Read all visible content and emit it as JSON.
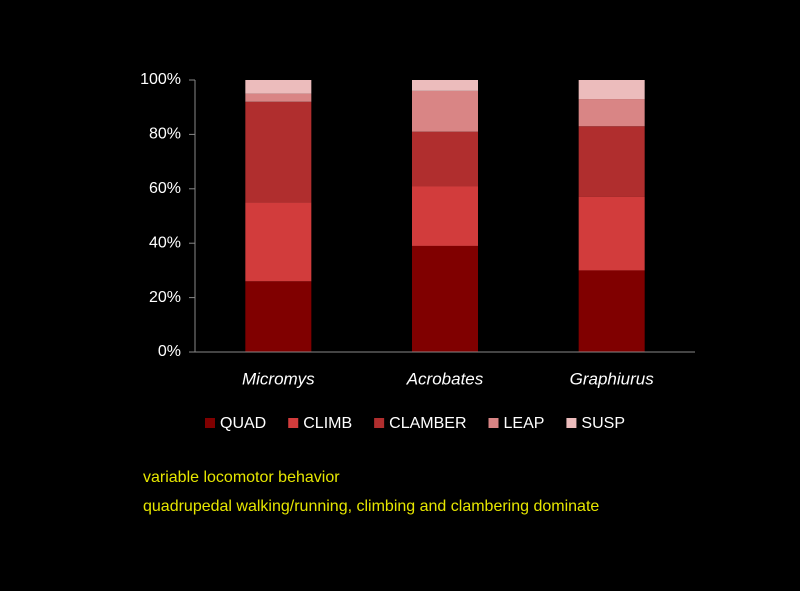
{
  "chart_data": {
    "type": "stacked_bar",
    "categories": [
      "Micromys",
      "Acrobates",
      "Graphiurus"
    ],
    "series": [
      {
        "name": "QUAD",
        "color": "#800000",
        "values": [
          26,
          39,
          30
        ]
      },
      {
        "name": "CLIMB",
        "color": "#d23c3c",
        "values": [
          29,
          22,
          27
        ]
      },
      {
        "name": "CLAMBER",
        "color": "#b02e2e",
        "values": [
          37,
          20,
          26
        ]
      },
      {
        "name": "LEAP",
        "color": "#d98585",
        "values": [
          3,
          15,
          10
        ]
      },
      {
        "name": "SUSP",
        "color": "#ecbcbc",
        "values": [
          5,
          4,
          7
        ]
      }
    ],
    "ylim": [
      0,
      100
    ],
    "yticks": [
      {
        "value": 0,
        "label": "0%"
      },
      {
        "value": 20,
        "label": "20%"
      },
      {
        "value": 40,
        "label": "40%"
      },
      {
        "value": 60,
        "label": "60%"
      },
      {
        "value": 80,
        "label": "80%"
      },
      {
        "value": 100,
        "label": "100%"
      }
    ],
    "legend": "bottom",
    "annotations": [
      "variable locomotor behavior",
      "quadrupedal walking/running, climbing and clambering dominate"
    ]
  }
}
